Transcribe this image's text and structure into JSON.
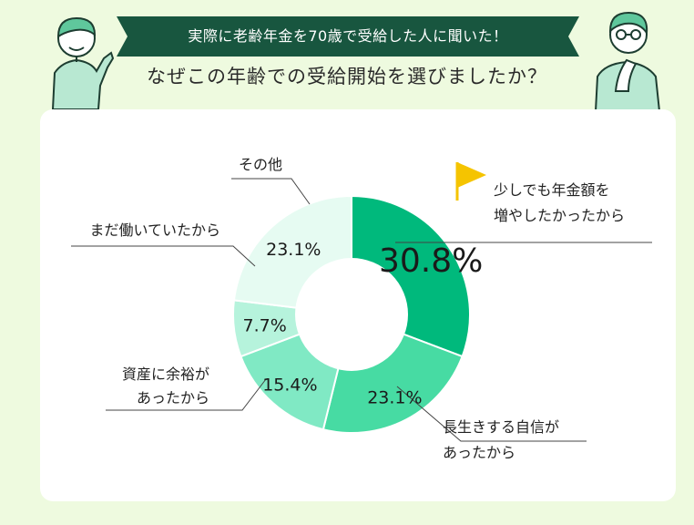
{
  "header": {
    "banner": "実際に老齢年金を70歳で受給した人に聞いた！",
    "question": "なぜこの年齢での受給開始を選びましたか？"
  },
  "colors": {
    "banner": "#18563f",
    "background": "#eefadf"
  },
  "chart_data": {
    "type": "pie",
    "donut": true,
    "start": "top, clockwise",
    "slices": [
      {
        "label": "少しでも年金額を増やしたかったから",
        "label_lines": [
          "少しでも年金額を",
          "増やしたかったから"
        ],
        "value": 30.8,
        "display": "30.8%",
        "color": "#00b97c",
        "flag_icon": true
      },
      {
        "label": "長生きする自信があったから",
        "label_lines": [
          "長生きする自信が",
          "あったから"
        ],
        "value": 23.1,
        "display": "23.1%",
        "color": "#47dba3"
      },
      {
        "label": "資産に余裕があったから",
        "label_lines": [
          "資産に余裕が",
          "あったから"
        ],
        "value": 15.4,
        "display": "15.4%",
        "color": "#80e9c4"
      },
      {
        "label": "まだ働いていたから",
        "label_lines": [
          "まだ働いていたから"
        ],
        "value": 7.7,
        "display": "7.7%",
        "color": "#b6f3dc"
      },
      {
        "label": "その他",
        "label_lines": [
          "その他"
        ],
        "value": 23.1,
        "display": "23.1%",
        "color": "#e6fbf2"
      }
    ]
  }
}
